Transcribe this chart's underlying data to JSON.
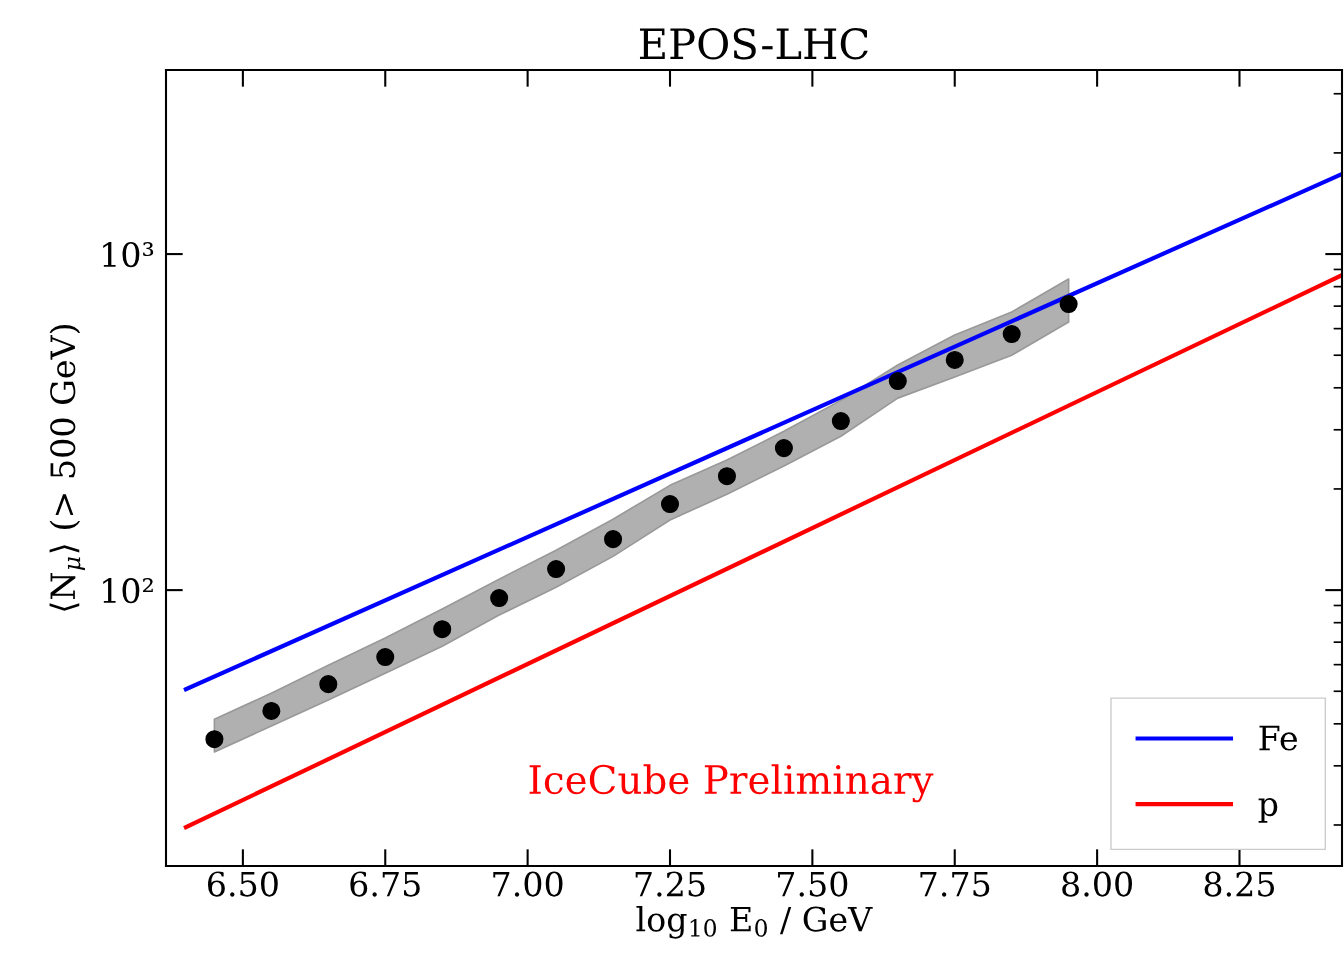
{
  "chart_data": {
    "type": "line",
    "title": "EPOS-LHC",
    "xlabel": "log$_{10}$ E$_{0}$ / GeV",
    "ylabel": "⟨N$_{μ}$⟩ (> 500 GeV)",
    "annotations": [
      "IceCube Preliminary"
    ],
    "log": "y",
    "grid": false,
    "legend": "bottom right",
    "xlim": [
      6.365,
      8.43
    ],
    "xticks": [
      {
        "value": 6.5,
        "label": "6.50"
      },
      {
        "value": 6.75,
        "label": "6.75"
      },
      {
        "value": 7.0,
        "label": "7.00"
      },
      {
        "value": 7.25,
        "label": "7.25"
      },
      {
        "value": 7.5,
        "label": "7.50"
      },
      {
        "value": 7.75,
        "label": "7.75"
      },
      {
        "value": 8.0,
        "label": "8.00"
      },
      {
        "value": 8.25,
        "label": "8.25"
      }
    ],
    "ylim": [
      15.1,
      3530
    ],
    "yticks": [
      {
        "value": 100,
        "label": "10²"
      },
      {
        "value": 1000,
        "label": "10³"
      }
    ],
    "series": [
      {
        "type": "scatter",
        "marker": "circle",
        "color": "#000000",
        "x": [
          6.45,
          6.55,
          6.65,
          6.75,
          6.85,
          6.95,
          7.05,
          7.15,
          7.25,
          7.35,
          7.45,
          7.55,
          7.65,
          7.75,
          7.85,
          7.95
        ],
        "values": [
          36.0,
          43.7,
          52.5,
          63.2,
          76.5,
          94.7,
          115.5,
          141.8,
          180.3,
          218.3,
          264.6,
          318.5,
          419,
          484,
          578,
          710
        ],
        "lower": [
          33.0,
          39.4,
          47.1,
          56.6,
          68.1,
          84.3,
          102,
          126,
          161.6,
          193,
          233.9,
          287,
          372.6,
          430.7,
          500,
          628
        ],
        "upper": [
          41.3,
          49.3,
          59.8,
          72,
          87.8,
          107.8,
          131.5,
          162.6,
          205,
          243.8,
          297,
          367,
          467.6,
          574,
          672,
          843
        ]
      },
      {
        "name": "Fe",
        "color": "#0000ff",
        "x": [
          6.4,
          8.43
        ],
        "values": [
          50.7,
          1730
        ]
      },
      {
        "name": "p",
        "color": "#ff0000",
        "x": [
          6.4,
          8.43
        ],
        "values": [
          19.7,
          866
        ]
      }
    ]
  }
}
